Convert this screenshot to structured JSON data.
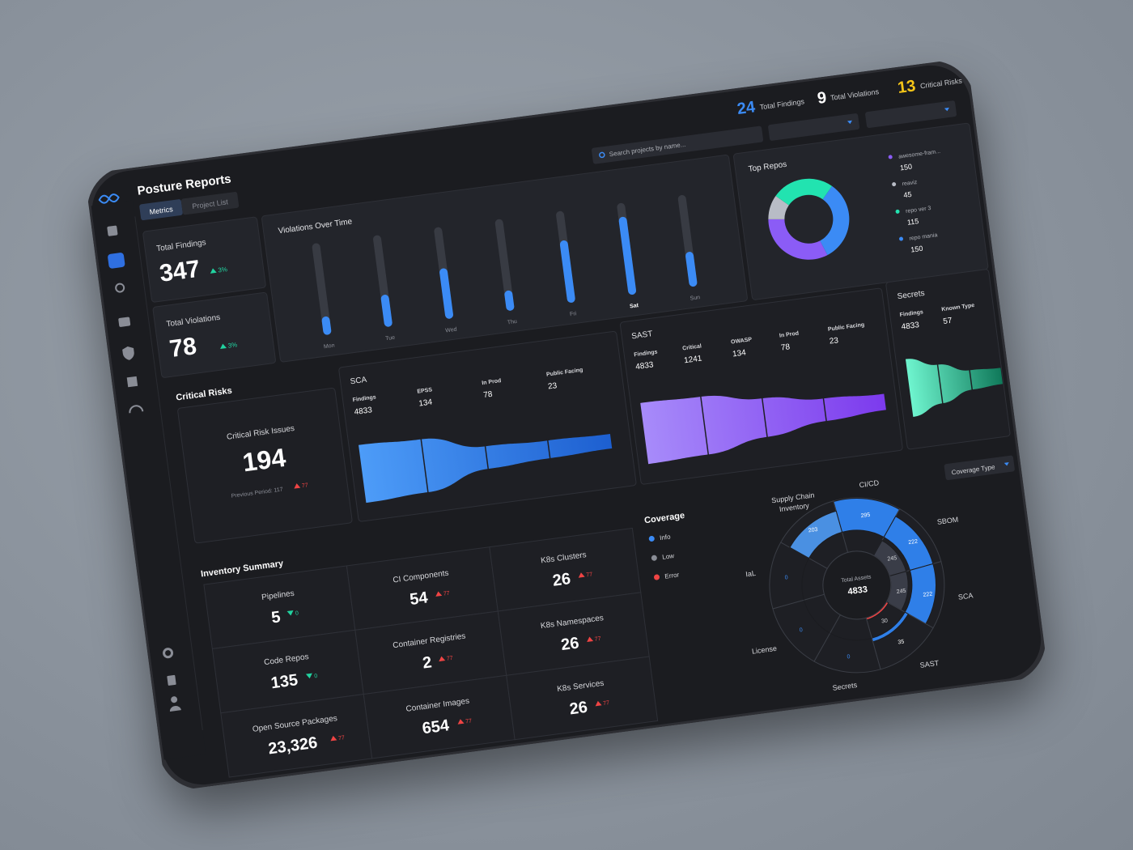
{
  "header": {
    "title": "Posture Reports",
    "tabs": [
      "Metrics",
      "Project List"
    ],
    "search_placeholder": "Search projects by name...",
    "totals": [
      {
        "value": 24,
        "label": "Total Findings",
        "color": "#3b8bf5"
      },
      {
        "value": 9,
        "label": "Total Violations",
        "color": "#ffffff"
      },
      {
        "value": 13,
        "label": "Critical Risks",
        "color": "#f5c518"
      }
    ]
  },
  "kpis": [
    {
      "label": "Total Findings",
      "value": 347,
      "change": "3%",
      "trend": "up"
    },
    {
      "label": "Total Violations",
      "value": 78,
      "change": "3%",
      "trend": "up"
    }
  ],
  "violations_over_time": {
    "title": "Violations Over Time",
    "categories": [
      "Mon",
      "Tue",
      "Wed",
      "Thu",
      "Fri",
      "Sat",
      "Sun"
    ],
    "values": [
      20,
      35,
      55,
      22,
      68,
      85,
      38
    ],
    "ylim": [
      0,
      100
    ],
    "color": "#3b8bf5"
  },
  "top_repos": {
    "title": "Top Repos",
    "items": [
      {
        "name": "awesome-fram...",
        "value": 150,
        "color": "#8b5cf6"
      },
      {
        "name": "reaviz",
        "value": 45,
        "color": "#b8bcc6"
      },
      {
        "name": "repo ver 3",
        "value": 115,
        "color": "#22e3b0"
      },
      {
        "name": "repo mania",
        "value": 150,
        "color": "#3b8bf5"
      }
    ]
  },
  "critical_risks": {
    "title": "Critical Risks",
    "label": "Critical Risk Issues",
    "value": 194,
    "previous": "Previous Period: 117",
    "change": 77,
    "trend": "up"
  },
  "funnels": [
    {
      "title": "SCA",
      "stages": [
        {
          "label": "Findings",
          "value": 4833
        },
        {
          "label": "EPSS",
          "value": 134
        },
        {
          "label": "In Prod",
          "value": 78
        },
        {
          "label": "Public Facing",
          "value": 23
        }
      ]
    },
    {
      "title": "SAST",
      "stages": [
        {
          "label": "Findings",
          "value": 4833
        },
        {
          "label": "Critical",
          "value": 1241
        },
        {
          "label": "OWASP",
          "value": 134
        },
        {
          "label": "In Prod",
          "value": 78
        },
        {
          "label": "Public Facing",
          "value": 23
        }
      ]
    },
    {
      "title": "Secrets",
      "stages": [
        {
          "label": "Findings",
          "value": 4833
        },
        {
          "label": "Known Type",
          "value": 57
        }
      ]
    }
  ],
  "inventory": {
    "title": "Inventory Summary",
    "items": [
      {
        "label": "Pipelines",
        "value": 5,
        "change": 0,
        "trend": "down"
      },
      {
        "label": "CI Components",
        "value": 54,
        "change": 77,
        "trend": "up"
      },
      {
        "label": "K8s Clusters",
        "value": 26,
        "change": 77,
        "trend": "up"
      },
      {
        "label": "Code Repos",
        "value": 135,
        "change": 0,
        "trend": "down"
      },
      {
        "label": "Container Registries",
        "value": 2,
        "change": 77,
        "trend": "up"
      },
      {
        "label": "K8s Namespaces",
        "value": 26,
        "change": 77,
        "trend": "up"
      },
      {
        "label": "Open Source Packages",
        "value": 23326,
        "value_label": "23,326",
        "change": 77,
        "trend": "up"
      },
      {
        "label": "Container Images",
        "value": 654,
        "change": 77,
        "trend": "up"
      },
      {
        "label": "K8s Services",
        "value": 26,
        "change": 77,
        "trend": "up"
      }
    ]
  },
  "coverage": {
    "title": "Coverage",
    "dropdown": "Coverage Type",
    "legend": [
      {
        "name": "Info",
        "color": "#3b8bf5"
      },
      {
        "name": "Low",
        "color": "#8a8d96"
      },
      {
        "name": "Error",
        "color": "#ef4444"
      }
    ],
    "center_label": "Total Assets",
    "center_value": 4833,
    "rlim": [
      0,
      300
    ],
    "segments": [
      {
        "name": "CI/CD",
        "value": 295
      },
      {
        "name": "SBOM",
        "value": 222,
        "inner": 245
      },
      {
        "name": "SCA",
        "value": 222,
        "inner": 245
      },
      {
        "name": "SAST",
        "value": 35,
        "inner": 30
      },
      {
        "name": "Secrets",
        "value": 0
      },
      {
        "name": "License",
        "value": 0
      },
      {
        "name": "IaL",
        "value": 0
      },
      {
        "name": "Supply Chain Inventory",
        "value": 203
      }
    ]
  }
}
